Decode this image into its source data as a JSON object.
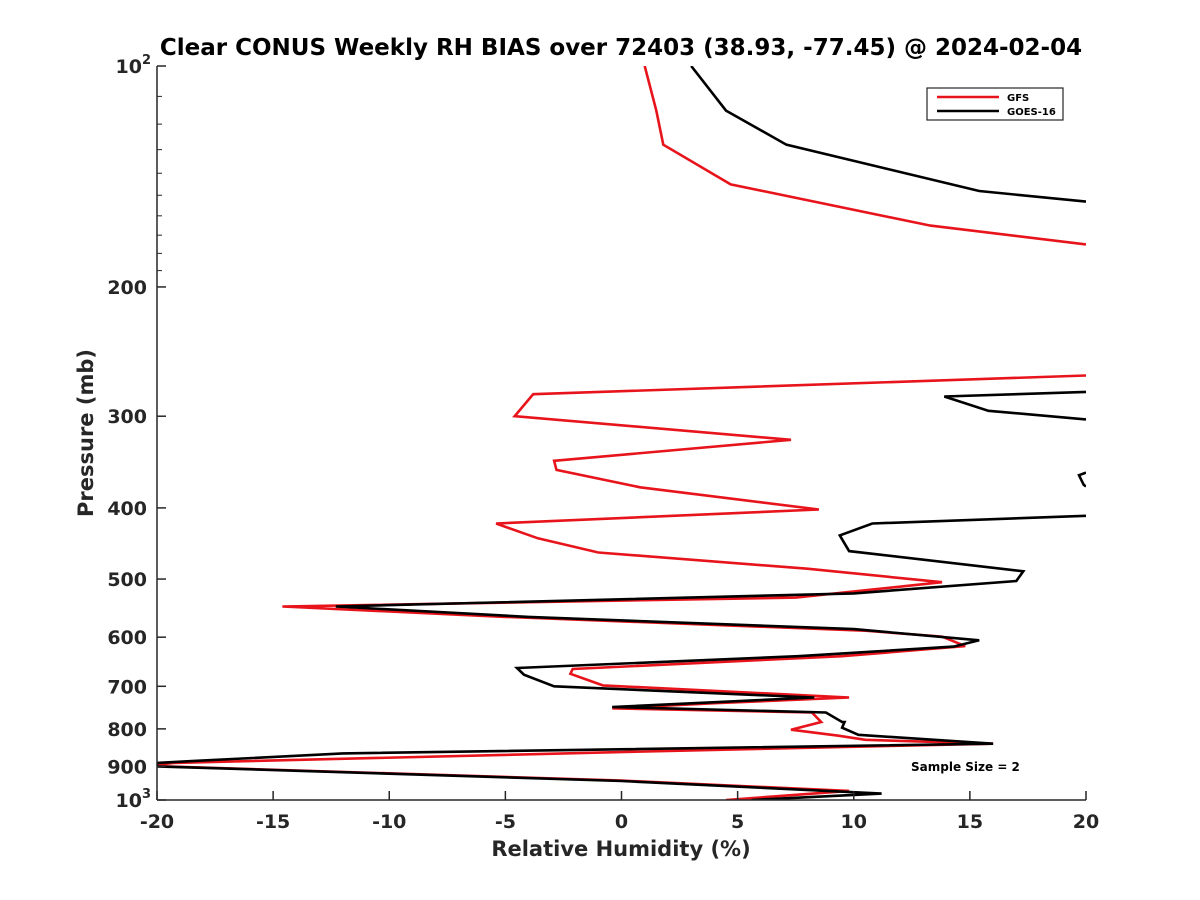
{
  "chart_data": {
    "type": "line",
    "title": "Clear CONUS Weekly RH BIAS over 72403 (38.93, -77.45) @ 2024-02-04",
    "xlabel": "Relative Humidity (%)",
    "ylabel": "Pressure (mb)",
    "xlim": [
      -20,
      20
    ],
    "ylim": [
      100,
      1000
    ],
    "yscale": "log",
    "y_reversed": true,
    "grid": false,
    "legend_position": "top-right",
    "annotation": "Sample Size = 2",
    "x_ticks": [
      "-20",
      "-15",
      "-10",
      "-5",
      "0",
      "5",
      "10",
      "15",
      "20"
    ],
    "y_ticks": [
      {
        "value": 100,
        "label": "10",
        "sup": "2"
      },
      {
        "value": 200,
        "label": "200",
        "sup": ""
      },
      {
        "value": 300,
        "label": "300",
        "sup": ""
      },
      {
        "value": 400,
        "label": "400",
        "sup": ""
      },
      {
        "value": 500,
        "label": "500",
        "sup": ""
      },
      {
        "value": 600,
        "label": "600",
        "sup": ""
      },
      {
        "value": 700,
        "label": "700",
        "sup": ""
      },
      {
        "value": 800,
        "label": "800",
        "sup": ""
      },
      {
        "value": 900,
        "label": "900",
        "sup": ""
      },
      {
        "value": 1000,
        "label": "10",
        "sup": "3"
      }
    ],
    "series": [
      {
        "name": "GFS",
        "color": "#e8141b",
        "segments": [
          [
            [
              1.0,
              100
            ],
            [
              1.5,
              115
            ],
            [
              1.8,
              128
            ],
            [
              4.7,
              145
            ],
            [
              13.3,
              165
            ],
            [
              20,
              175
            ]
          ],
          [
            [
              20,
              264
            ],
            [
              -3.8,
              280
            ],
            [
              -4.6,
              300
            ],
            [
              7.3,
              323
            ],
            [
              -2.9,
              345
            ],
            [
              -2.8,
              355
            ],
            [
              0.8,
              375
            ],
            [
              8.5,
              402
            ],
            [
              -5.4,
              420
            ],
            [
              -3.6,
              440
            ],
            [
              -1.0,
              460
            ],
            [
              8.0,
              484
            ],
            [
              13.8,
              505
            ],
            [
              7.5,
              530
            ],
            [
              -14.6,
              545
            ],
            [
              -5,
              563
            ],
            [
              10.5,
              588
            ],
            [
              13.8,
              599
            ],
            [
              14.8,
              617
            ],
            [
              9.5,
              637
            ],
            [
              -2.1,
              663
            ],
            [
              -2.2,
              673
            ],
            [
              -0.8,
              698
            ],
            [
              9.8,
              725
            ],
            [
              4.0,
              738
            ],
            [
              -0.4,
              750
            ],
            [
              8.2,
              760
            ],
            [
              8.6,
              783
            ],
            [
              7.3,
              802
            ],
            [
              9.3,
              817
            ],
            [
              10.5,
              828
            ],
            [
              16.0,
              838
            ],
            [
              3.0,
              856
            ],
            [
              -19.3,
              890
            ],
            [
              -20,
              896
            ],
            [
              -19.6,
              900
            ],
            [
              0,
              941
            ],
            [
              9.8,
              972
            ],
            [
              4.5,
              1000
            ]
          ]
        ]
      },
      {
        "name": "GOES-16",
        "color": "#000000",
        "segments": [
          [
            [
              3.0,
              100
            ],
            [
              4.5,
              115
            ],
            [
              7.1,
              128
            ],
            [
              15.4,
              148
            ],
            [
              20,
              153
            ]
          ],
          [
            [
              20,
              278
            ],
            [
              13.9,
              282
            ],
            [
              15.8,
              295
            ],
            [
              20,
              303
            ]
          ],
          [
            [
              20,
              358
            ],
            [
              19.7,
              361
            ],
            [
              19.9,
              372
            ],
            [
              20,
              374
            ]
          ],
          [
            [
              20,
              410
            ],
            [
              10.8,
              420
            ],
            [
              9.4,
              436
            ],
            [
              9.8,
              458
            ],
            [
              17.3,
              488
            ],
            [
              17.0,
              503
            ],
            [
              10,
              523
            ],
            [
              -12.3,
              545
            ],
            [
              -4,
              563
            ],
            [
              10.0,
              585
            ],
            [
              15.4,
              606
            ],
            [
              14.3,
              618
            ],
            [
              7.6,
              637
            ],
            [
              -4.5,
              661
            ],
            [
              -4.2,
              675
            ],
            [
              -2.9,
              700
            ],
            [
              8.3,
              725
            ],
            [
              -0.4,
              747
            ],
            [
              8.8,
              760
            ],
            [
              9.5,
              783
            ],
            [
              9.6,
              783
            ],
            [
              9.5,
              797
            ],
            [
              10.2,
              815
            ],
            [
              16.0,
              838
            ],
            [
              -12,
              864
            ],
            [
              -18.5,
              885
            ],
            [
              -20,
              890
            ],
            [
              -20,
              900
            ],
            [
              0,
              942
            ],
            [
              11.2,
              980
            ],
            [
              5.6,
              1000
            ]
          ]
        ]
      }
    ]
  }
}
